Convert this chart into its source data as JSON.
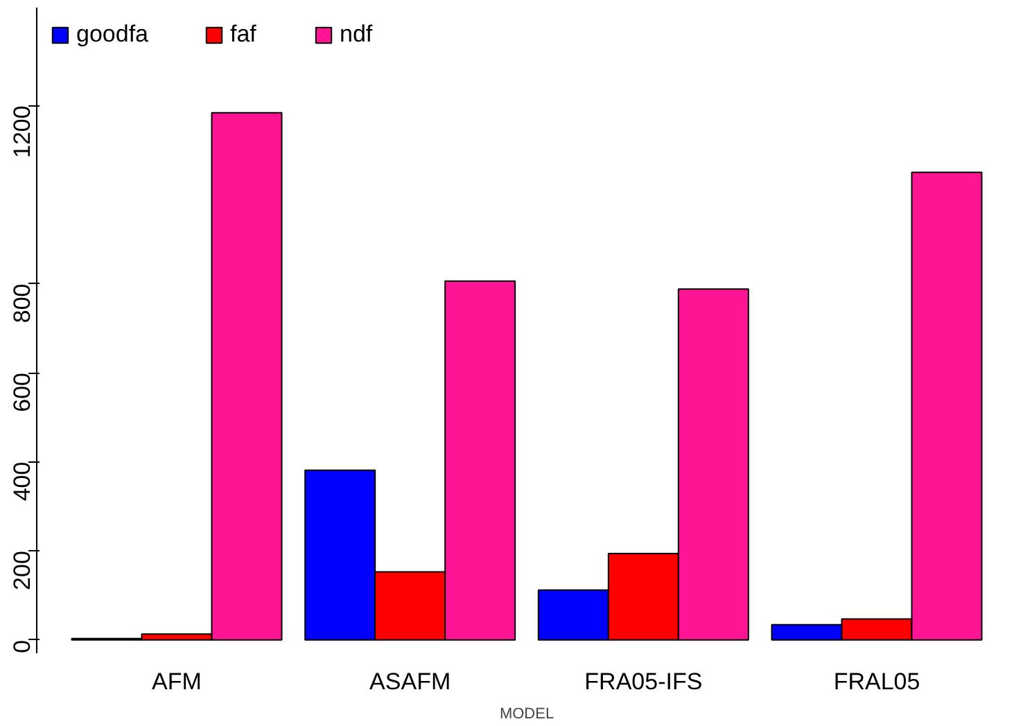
{
  "chart_data": {
    "type": "bar",
    "xlabel": "MODEL",
    "categories": [
      "AFM",
      "ASAFM",
      "FRA05-IFS",
      "FRAL05"
    ],
    "series": [
      {
        "name": "goodfa",
        "color": "#0000ff",
        "values": [
          3,
          381,
          112,
          34
        ]
      },
      {
        "name": "faf",
        "color": "#ff0000",
        "values": [
          13,
          153,
          194,
          47
        ]
      },
      {
        "name": "ndf",
        "color": "#ff1493",
        "values": [
          1184,
          806,
          788,
          1050
        ]
      }
    ],
    "ylim": [
      -30,
      1420
    ],
    "yticks": [
      0,
      200,
      400,
      600,
      800,
      1200
    ],
    "grid": false,
    "legend": "top left"
  }
}
